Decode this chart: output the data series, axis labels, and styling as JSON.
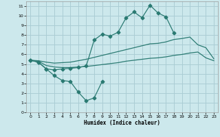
{
  "background_color": "#cce8ec",
  "grid_color": "#aacdd4",
  "line_color": "#2a7a72",
  "xlabel": "Humidex (Indice chaleur)",
  "xlim": [
    -0.5,
    23.5
  ],
  "ylim": [
    0,
    11.5
  ],
  "xticks": [
    0,
    1,
    2,
    3,
    4,
    5,
    6,
    7,
    8,
    9,
    10,
    11,
    12,
    13,
    14,
    15,
    16,
    17,
    18,
    19,
    20,
    21,
    22,
    23
  ],
  "yticks": [
    0,
    1,
    2,
    3,
    4,
    5,
    6,
    7,
    8,
    9,
    10,
    11
  ],
  "line1_x": [
    0,
    1,
    2,
    3,
    4,
    5,
    6,
    7,
    8,
    9
  ],
  "line1_y": [
    5.4,
    5.2,
    4.5,
    3.8,
    3.3,
    3.2,
    2.1,
    1.2,
    1.5,
    3.2
  ],
  "line2_x": [
    0,
    1,
    2,
    3,
    4,
    5,
    6,
    7,
    8,
    9,
    10,
    11,
    12,
    13,
    14,
    15,
    16,
    17,
    18
  ],
  "line2_y": [
    5.4,
    5.2,
    4.5,
    4.4,
    4.5,
    4.55,
    4.65,
    4.8,
    7.5,
    8.1,
    7.9,
    8.3,
    9.8,
    10.4,
    9.8,
    11.1,
    10.3,
    9.9,
    8.2
  ],
  "line3_x": [
    0,
    1,
    2,
    3,
    4,
    5,
    6,
    7,
    8,
    9,
    10,
    11,
    12,
    13,
    14,
    15,
    16,
    17,
    18,
    19,
    20,
    21,
    22,
    23
  ],
  "line3_y": [
    5.4,
    5.35,
    5.2,
    5.1,
    5.15,
    5.2,
    5.35,
    5.5,
    5.7,
    5.9,
    6.1,
    6.3,
    6.5,
    6.7,
    6.9,
    7.1,
    7.15,
    7.3,
    7.55,
    7.65,
    7.8,
    7.0,
    6.7,
    5.55
  ],
  "line4_x": [
    0,
    1,
    2,
    3,
    4,
    5,
    6,
    7,
    8,
    9,
    10,
    11,
    12,
    13,
    14,
    15,
    16,
    17,
    18,
    19,
    20,
    21,
    22,
    23
  ],
  "line4_y": [
    5.4,
    5.3,
    4.85,
    4.7,
    4.65,
    4.65,
    4.7,
    4.75,
    4.85,
    4.95,
    5.05,
    5.15,
    5.3,
    5.4,
    5.5,
    5.6,
    5.65,
    5.75,
    5.9,
    6.0,
    6.15,
    6.25,
    5.65,
    5.35
  ]
}
